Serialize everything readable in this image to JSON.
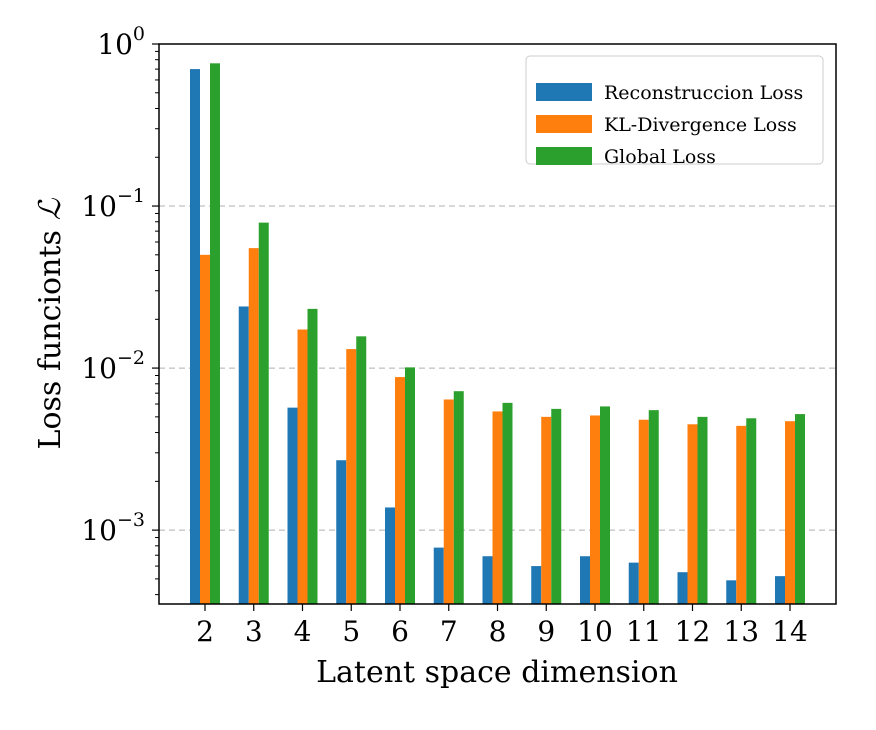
{
  "chart_data": {
    "type": "bar",
    "scale_y": "log",
    "categories": [
      "2",
      "3",
      "4",
      "5",
      "6",
      "7",
      "8",
      "9",
      "10",
      "11",
      "12",
      "13",
      "14"
    ],
    "series": [
      {
        "name": "Reconstruccion Loss",
        "color": "#1f77b4",
        "values": [
          0.7,
          0.024,
          0.0057,
          0.0027,
          0.00138,
          0.00078,
          0.00069,
          0.0006,
          0.00069,
          0.00063,
          0.00055,
          0.00049,
          0.00052
        ]
      },
      {
        "name": "KL-Divergence Loss",
        "color": "#ff7f0e",
        "values": [
          0.05,
          0.055,
          0.0173,
          0.0131,
          0.0088,
          0.0064,
          0.0054,
          0.005,
          0.0051,
          0.0048,
          0.0045,
          0.0044,
          0.0047
        ]
      },
      {
        "name": "Global Loss",
        "color": "#2ca02c",
        "values": [
          0.76,
          0.079,
          0.0232,
          0.0157,
          0.0101,
          0.0072,
          0.0061,
          0.0056,
          0.0058,
          0.0055,
          0.005,
          0.0049,
          0.0052
        ]
      }
    ],
    "ylim": [
      0.00035,
      1.0
    ],
    "yticks": [
      {
        "base": "10",
        "exp": "0",
        "value": 1
      },
      {
        "base": "10",
        "exp": "−1",
        "value": 0.1
      },
      {
        "base": "10",
        "exp": "−2",
        "value": 0.01
      },
      {
        "base": "10",
        "exp": "−3",
        "value": 0.001
      }
    ],
    "xlabel": "Latent space dimension",
    "ylabel_prefix": "Loss funcionts",
    "ylabel_symbol": "ℒ",
    "grid": "y-major-dashed",
    "legend_position": "top-right"
  }
}
